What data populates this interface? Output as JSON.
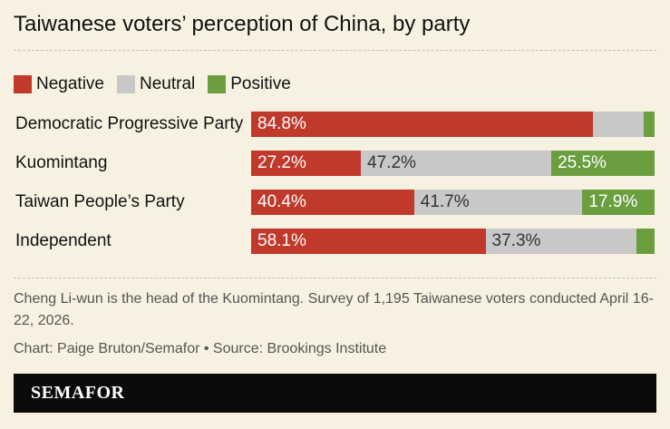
{
  "title": "Taiwanese voters’ perception of China, by party",
  "colors": {
    "Negative": "#c0392b",
    "Neutral": "#c8c8c8",
    "Positive": "#6a9e3f"
  },
  "legend": [
    {
      "name": "Negative",
      "label": "Negative"
    },
    {
      "name": "Neutral",
      "label": "Neutral"
    },
    {
      "name": "Positive",
      "label": "Positive"
    }
  ],
  "chart_data": {
    "type": "bar",
    "orientation": "horizontal",
    "stacked": true,
    "categories": [
      "Democratic Progressive Party",
      "Kuomintang",
      "Taiwan People’s Party",
      "Independent"
    ],
    "series": [
      {
        "name": "Negative",
        "values": [
          84.8,
          27.2,
          40.4,
          58.1
        ],
        "labels": [
          "84.8%",
          "27.2%",
          "40.4%",
          "58.1%"
        ]
      },
      {
        "name": "Neutral",
        "values": [
          12.4,
          47.2,
          41.7,
          37.3
        ],
        "labels": [
          "",
          "47.2%",
          "41.7%",
          "37.3%"
        ]
      },
      {
        "name": "Positive",
        "values": [
          2.8,
          25.5,
          17.9,
          4.6
        ],
        "labels": [
          "",
          "25.5%",
          "17.9%",
          ""
        ]
      }
    ],
    "xlim": [
      0,
      100
    ],
    "grid": false,
    "legend_position": "top-left"
  },
  "note": "Cheng Li-wun is the head of the Kuomintang. Survey of 1,195 Taiwanese voters conducted April 16-22, 2026.",
  "credit": "Chart: Paige Bruton/Semafor • Source: Brookings Institute",
  "brand": "SEMAFOR"
}
